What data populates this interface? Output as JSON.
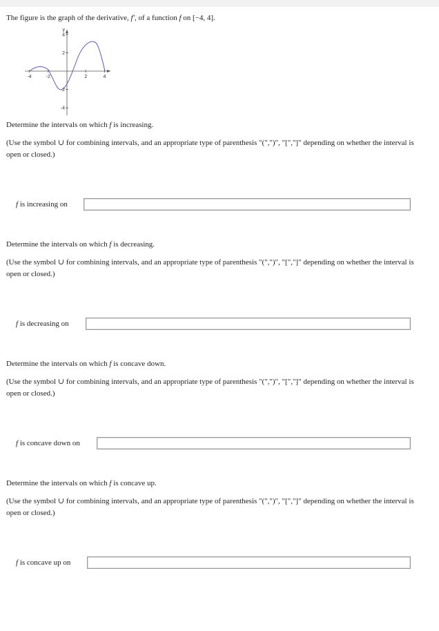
{
  "intro": [
    "The figure is the graph of the derivative, ",
    "f′",
    ", of a function ",
    "f",
    " on [−4, 4]."
  ],
  "figure": {
    "ylabel": "y",
    "xticks": [
      -4,
      -2,
      2,
      4
    ],
    "yticks": [
      4,
      2,
      -2,
      -4
    ]
  },
  "questions": [
    {
      "prompt": [
        "Determine the intervals on which ",
        "f",
        " is increasing."
      ],
      "instruction": "(Use the symbol ∪ for combining intervals, and an appropriate type of parenthesis \"(\",\")\", \"[\",\"]\" depending on whether the interval is open or closed.)",
      "label": [
        "f",
        " is increasing on"
      ]
    },
    {
      "prompt": [
        "Determine the intervals on which ",
        "f",
        " is decreasing."
      ],
      "instruction": "(Use the symbol ∪ for combining intervals, and an appropriate type of parenthesis \"(\",\")\", \"[\",\"]\" depending on whether the interval is open or closed.)",
      "label": [
        "f",
        " is decreasing on"
      ]
    },
    {
      "prompt": [
        "Determine the intervals on which ",
        "f",
        " is concave down."
      ],
      "instruction": "(Use the symbol ∪ for combining intervals, and an appropriate type of parenthesis \"(\",\")\", \"[\",\"]\" depending on whether the interval is open or closed.)",
      "label": [
        "f",
        " is concave down on"
      ]
    },
    {
      "prompt": [
        "Determine the intervals on which ",
        "f",
        " is concave up."
      ],
      "instruction": "(Use the symbol ∪ for combining intervals, and an appropriate type of parenthesis \"(\",\")\", \"[\",\"]\" depending on whether the interval is open or closed.)",
      "label": [
        "f",
        " is concave up on"
      ]
    }
  ]
}
